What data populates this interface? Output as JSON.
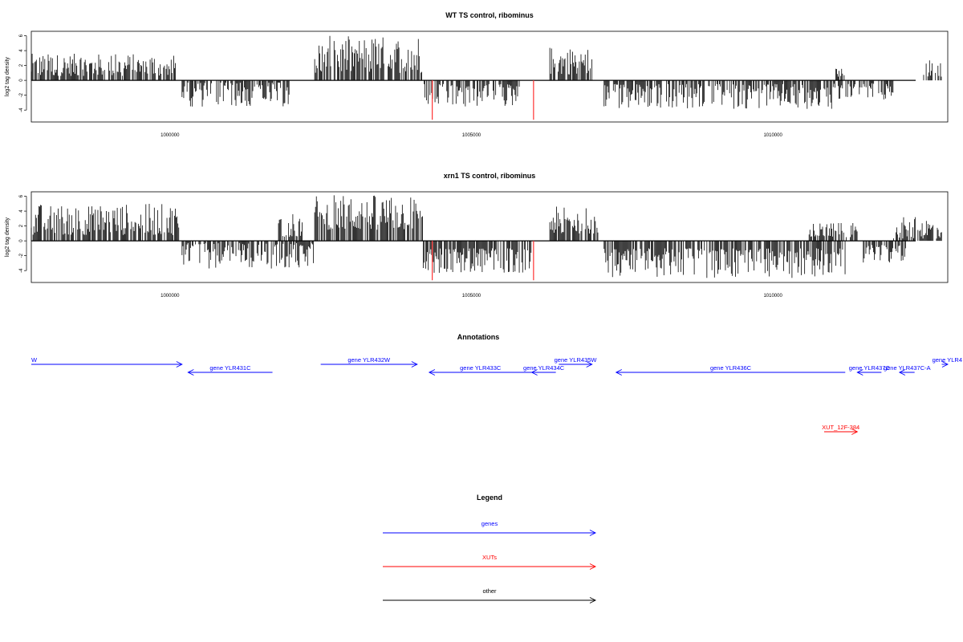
{
  "colors": {
    "gene": "#0000ff",
    "xut": "#ff0000",
    "other": "#000000",
    "highlight": "#ff3333",
    "signal": "#000000"
  },
  "chart_data": [
    {
      "type": "bar",
      "title": "WT TS control, ribominus",
      "ylabel": "log2 tag density",
      "yticks": [
        6,
        4,
        2,
        0,
        -2,
        -4
      ],
      "ylim": [
        -5.6,
        6.6
      ],
      "xlim": [
        997700,
        1012900
      ],
      "xticks": [
        1000000,
        1005000,
        1010000
      ],
      "xtick_labels": [
        "1000000",
        "1005000",
        "1010000"
      ],
      "segments": [
        {
          "start": 997700,
          "end": 1000100,
          "dir": 1,
          "min": 0.6,
          "max": 3.6
        },
        {
          "start": 1000200,
          "end": 1002000,
          "dir": -1,
          "min": 0.3,
          "max": 3.6
        },
        {
          "start": 1002400,
          "end": 1004200,
          "dir": 1,
          "min": 1.0,
          "max": 6.0
        },
        {
          "start": 1004200,
          "end": 1005800,
          "dir": -1,
          "min": 0.5,
          "max": 3.6
        },
        {
          "start": 1006300,
          "end": 1007000,
          "dir": 1,
          "min": 0.8,
          "max": 4.6
        },
        {
          "start": 1007200,
          "end": 1011000,
          "dir": -1,
          "min": 0.5,
          "max": 3.9
        },
        {
          "start": 1011000,
          "end": 1012000,
          "dir": -1,
          "min": 0.4,
          "max": 2.6
        },
        {
          "start": 1011000,
          "end": 1011200,
          "dir": 1,
          "min": 0.5,
          "max": 1.6
        },
        {
          "start": 1012500,
          "end": 1012800,
          "dir": 1,
          "min": 0.5,
          "max": 2.8
        }
      ],
      "highlights": [
        {
          "x": 1004350,
          "y": -5.3
        },
        {
          "x": 1006030,
          "y": -5.3
        }
      ]
    },
    {
      "type": "bar",
      "title": "xrn1 TS control, ribominus",
      "ylabel": "log2 tag density",
      "yticks": [
        6,
        4,
        2,
        0,
        -2,
        -4
      ],
      "ylim": [
        -5.6,
        6.6
      ],
      "xlim": [
        997700,
        1012900
      ],
      "xticks": [
        1000000,
        1005000,
        1010000
      ],
      "xtick_labels": [
        "1000000",
        "1005000",
        "1010000"
      ],
      "segments": [
        {
          "start": 997700,
          "end": 1000150,
          "dir": 1,
          "min": 0.8,
          "max": 5.0
        },
        {
          "start": 1000200,
          "end": 1002400,
          "dir": -1,
          "min": 0.3,
          "max": 3.8
        },
        {
          "start": 1001800,
          "end": 1002200,
          "dir": 1,
          "min": 0.5,
          "max": 3.8
        },
        {
          "start": 1002400,
          "end": 1004200,
          "dir": 1,
          "min": 1.5,
          "max": 6.2
        },
        {
          "start": 1004200,
          "end": 1006000,
          "dir": -1,
          "min": 1.0,
          "max": 4.4
        },
        {
          "start": 1006300,
          "end": 1007100,
          "dir": 1,
          "min": 1.0,
          "max": 4.6
        },
        {
          "start": 1007200,
          "end": 1011200,
          "dir": -1,
          "min": 1.0,
          "max": 5.0
        },
        {
          "start": 1010600,
          "end": 1011400,
          "dir": 1,
          "min": 0.5,
          "max": 2.4
        },
        {
          "start": 1011500,
          "end": 1012200,
          "dir": -1,
          "min": 0.5,
          "max": 3.0
        },
        {
          "start": 1012000,
          "end": 1012800,
          "dir": 1,
          "min": 0.3,
          "max": 3.2
        }
      ],
      "highlights": [
        {
          "x": 1004350,
          "y": -5.3
        },
        {
          "x": 1006030,
          "y": -5.3
        }
      ]
    }
  ],
  "annotations": {
    "title": "Annotations",
    "xlim": [
      997700,
      1012900
    ],
    "features": [
      {
        "label": "W",
        "class": "gene",
        "start": 997700,
        "end": 1000200,
        "strand": "+",
        "row": 0
      },
      {
        "label": "gene YLR431C",
        "class": "gene",
        "start": 1000300,
        "end": 1001700,
        "strand": "-",
        "row": 1
      },
      {
        "label": "gene YLR432W",
        "class": "gene",
        "start": 1002500,
        "end": 1004100,
        "strand": "+",
        "row": 0
      },
      {
        "label": "gene YLR433C",
        "class": "gene",
        "start": 1004300,
        "end": 1006000,
        "strand": "-",
        "row": 1
      },
      {
        "label": "gene YLR434C",
        "class": "gene",
        "start": 1006000,
        "end": 1006400,
        "strand": "-",
        "row": 1
      },
      {
        "label": "gene YLR435W",
        "class": "gene",
        "start": 1006450,
        "end": 1007000,
        "strand": "+",
        "row": 0
      },
      {
        "label": "gene YLR436C",
        "class": "gene",
        "start": 1007400,
        "end": 1011200,
        "strand": "-",
        "row": 1
      },
      {
        "label": "gene YLR437C",
        "class": "gene",
        "start": 1011400,
        "end": 1011800,
        "strand": "-",
        "row": 1
      },
      {
        "label": "gene YLR437C-A",
        "class": "gene",
        "start": 1012100,
        "end": 1012350,
        "strand": "-",
        "row": 1
      },
      {
        "label": "gene YLR4",
        "class": "gene",
        "start": 1012800,
        "end": 1012900,
        "strand": "+",
        "row": 0
      },
      {
        "label": "XUT_12F-384",
        "class": "xut",
        "start": 1010850,
        "end": 1011400,
        "strand": "+",
        "row": 2
      }
    ]
  },
  "legend": {
    "title": "Legend",
    "items": [
      {
        "label": "genes",
        "class": "gene"
      },
      {
        "label": "XUTs",
        "class": "xut"
      },
      {
        "label": "other",
        "class": "other"
      }
    ]
  }
}
